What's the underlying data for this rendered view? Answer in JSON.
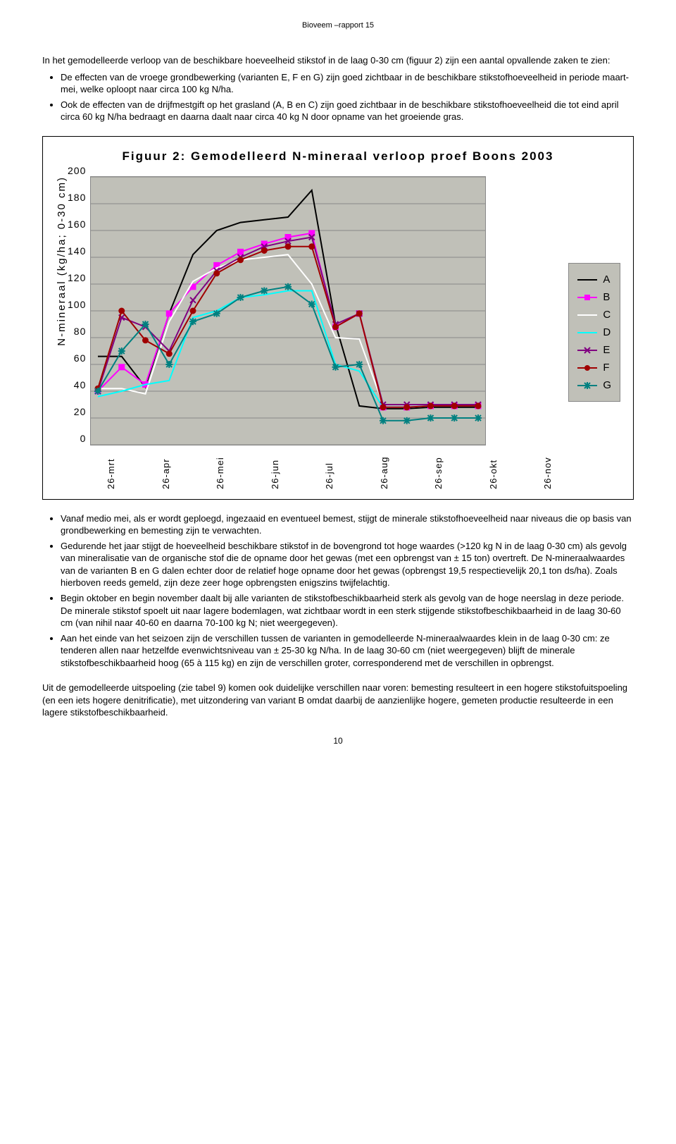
{
  "report_header": "Bioveem –rapport 15",
  "intro": "In het gemodelleerde verloop van de beschikbare hoeveelheid stikstof in de laag 0-30 cm (figuur 2) zijn een aantal opvallende zaken te zien:",
  "top_bullets": [
    "De effecten van de vroege grondbewerking (varianten E, F en G) zijn goed zichtbaar in de beschikbare stikstofhoeveelheid in periode maart-mei, welke oploopt naar circa 100 kg N/ha.",
    "Ook de effecten van de drijfmestgift op het grasland (A, B en C) zijn goed zichtbaar in de beschikbare stikstofhoeveelheid die tot eind april circa 60 kg N/ha bedraagt en daarna daalt naar circa 40 kg N door opname van het groeiende gras."
  ],
  "chart": {
    "title": "Figuur 2: Gemodelleerd N-mineraal verloop proef Boons 2003",
    "y_label": "N-mineraal (kg/ha; 0-30 cm)",
    "y_ticks": [
      "200",
      "180",
      "160",
      "140",
      "120",
      "100",
      "80",
      "60",
      "40",
      "20",
      "0"
    ],
    "ylim": [
      0,
      200
    ],
    "x_labels": [
      "26-mrt",
      "26-apr",
      "26-mei",
      "26-jun",
      "26-jul",
      "26-aug",
      "26-sep",
      "26-okt",
      "26-nov"
    ],
    "plot_bg": "#c0c0b8",
    "grid_color": "#888888",
    "series": {
      "A": {
        "label": "A",
        "color": "#000000",
        "marker": "none",
        "values": [
          66,
          66,
          43,
          98,
          142,
          160,
          166,
          168,
          170,
          190,
          90,
          29,
          27,
          27,
          28,
          28,
          28
        ]
      },
      "B": {
        "label": "B",
        "color": "#ff00ff",
        "marker": "square",
        "values": [
          40,
          58,
          45,
          98,
          118,
          134,
          144,
          150,
          155,
          158,
          88,
          98,
          28,
          28,
          29,
          29,
          29
        ]
      },
      "C": {
        "label": "C",
        "color": "#ffffff",
        "marker": "none",
        "values": [
          42,
          42,
          38,
          92,
          122,
          132,
          138,
          140,
          142,
          120,
          80,
          79,
          30,
          30,
          30,
          30,
          30
        ]
      },
      "D": {
        "label": "D",
        "color": "#00ffff",
        "marker": "none",
        "values": [
          36,
          40,
          45,
          48,
          95,
          100,
          110,
          112,
          115,
          115,
          60,
          55,
          28,
          28,
          29,
          29,
          29
        ]
      },
      "E": {
        "label": "E",
        "color": "#800080",
        "marker": "x",
        "values": [
          40,
          95,
          88,
          70,
          108,
          130,
          140,
          148,
          152,
          155,
          90,
          98,
          30,
          30,
          30,
          30,
          30
        ]
      },
      "F": {
        "label": "F",
        "color": "#a00000",
        "marker": "circle",
        "values": [
          42,
          100,
          78,
          68,
          100,
          128,
          138,
          145,
          148,
          148,
          88,
          98,
          28,
          28,
          29,
          29,
          29
        ]
      },
      "G": {
        "label": "G",
        "color": "#008080",
        "marker": "star",
        "values": [
          40,
          70,
          90,
          60,
          92,
          98,
          110,
          115,
          118,
          105,
          58,
          60,
          18,
          18,
          20,
          20,
          20
        ]
      }
    },
    "legend_order": [
      "A",
      "B",
      "C",
      "D",
      "E",
      "F",
      "G"
    ]
  },
  "lower_bullets": [
    "Vanaf medio mei, als er wordt geploegd, ingezaaid en eventueel bemest, stijgt de minerale stikstofhoeveelheid naar niveaus die op basis van grondbewerking en bemesting zijn te verwachten.",
    "Gedurende het jaar stijgt de hoeveelheid beschikbare stikstof in de bovengrond tot hoge waardes (>120 kg N in de laag 0-30 cm) als gevolg van mineralisatie van de organische stof die de opname door het gewas (met een opbrengst van ± 15 ton) overtreft. De N-mineraalwaardes van de varianten B en G dalen echter door de relatief hoge opname door het gewas (opbrengst 19,5 respectievelijk 20,1 ton ds/ha). Zoals hierboven reeds gemeld, zijn deze zeer hoge opbrengsten enigszins twijfelachtig.",
    "Begin oktober en begin november daalt bij alle varianten de stikstofbeschikbaarheid sterk als gevolg van de hoge neerslag in deze periode. De minerale stikstof spoelt uit naar lagere bodemlagen, wat zichtbaar wordt in een sterk stijgende stikstofbeschikbaarheid in de laag 30-60 cm (van nihil naar 40-60 en daarna 70-100 kg N; niet weergegeven).",
    "Aan het einde van het seizoen zijn de verschillen tussen de varianten in gemodelleerde N-mineraalwaardes klein in de laag 0-30 cm: ze tenderen allen naar hetzelfde evenwichtsniveau van ± 25-30 kg N/ha. In de laag 30-60 cm (niet weergegeven) blijft de minerale stikstofbeschikbaarheid hoog (65 à 115 kg) en zijn de verschillen groter, corresponderend met de verschillen in opbrengst."
  ],
  "closing": "Uit de gemodelleerde uitspoeling (zie tabel 9) komen ook duidelijke verschillen naar voren: bemesting resulteert in een hogere stikstofuitspoeling (en een iets hogere denitrificatie), met uitzondering van variant B omdat daarbij de aanzienlijke hogere, gemeten productie resulteerde in een lagere stikstofbeschikbaarheid.",
  "page_number": "10"
}
